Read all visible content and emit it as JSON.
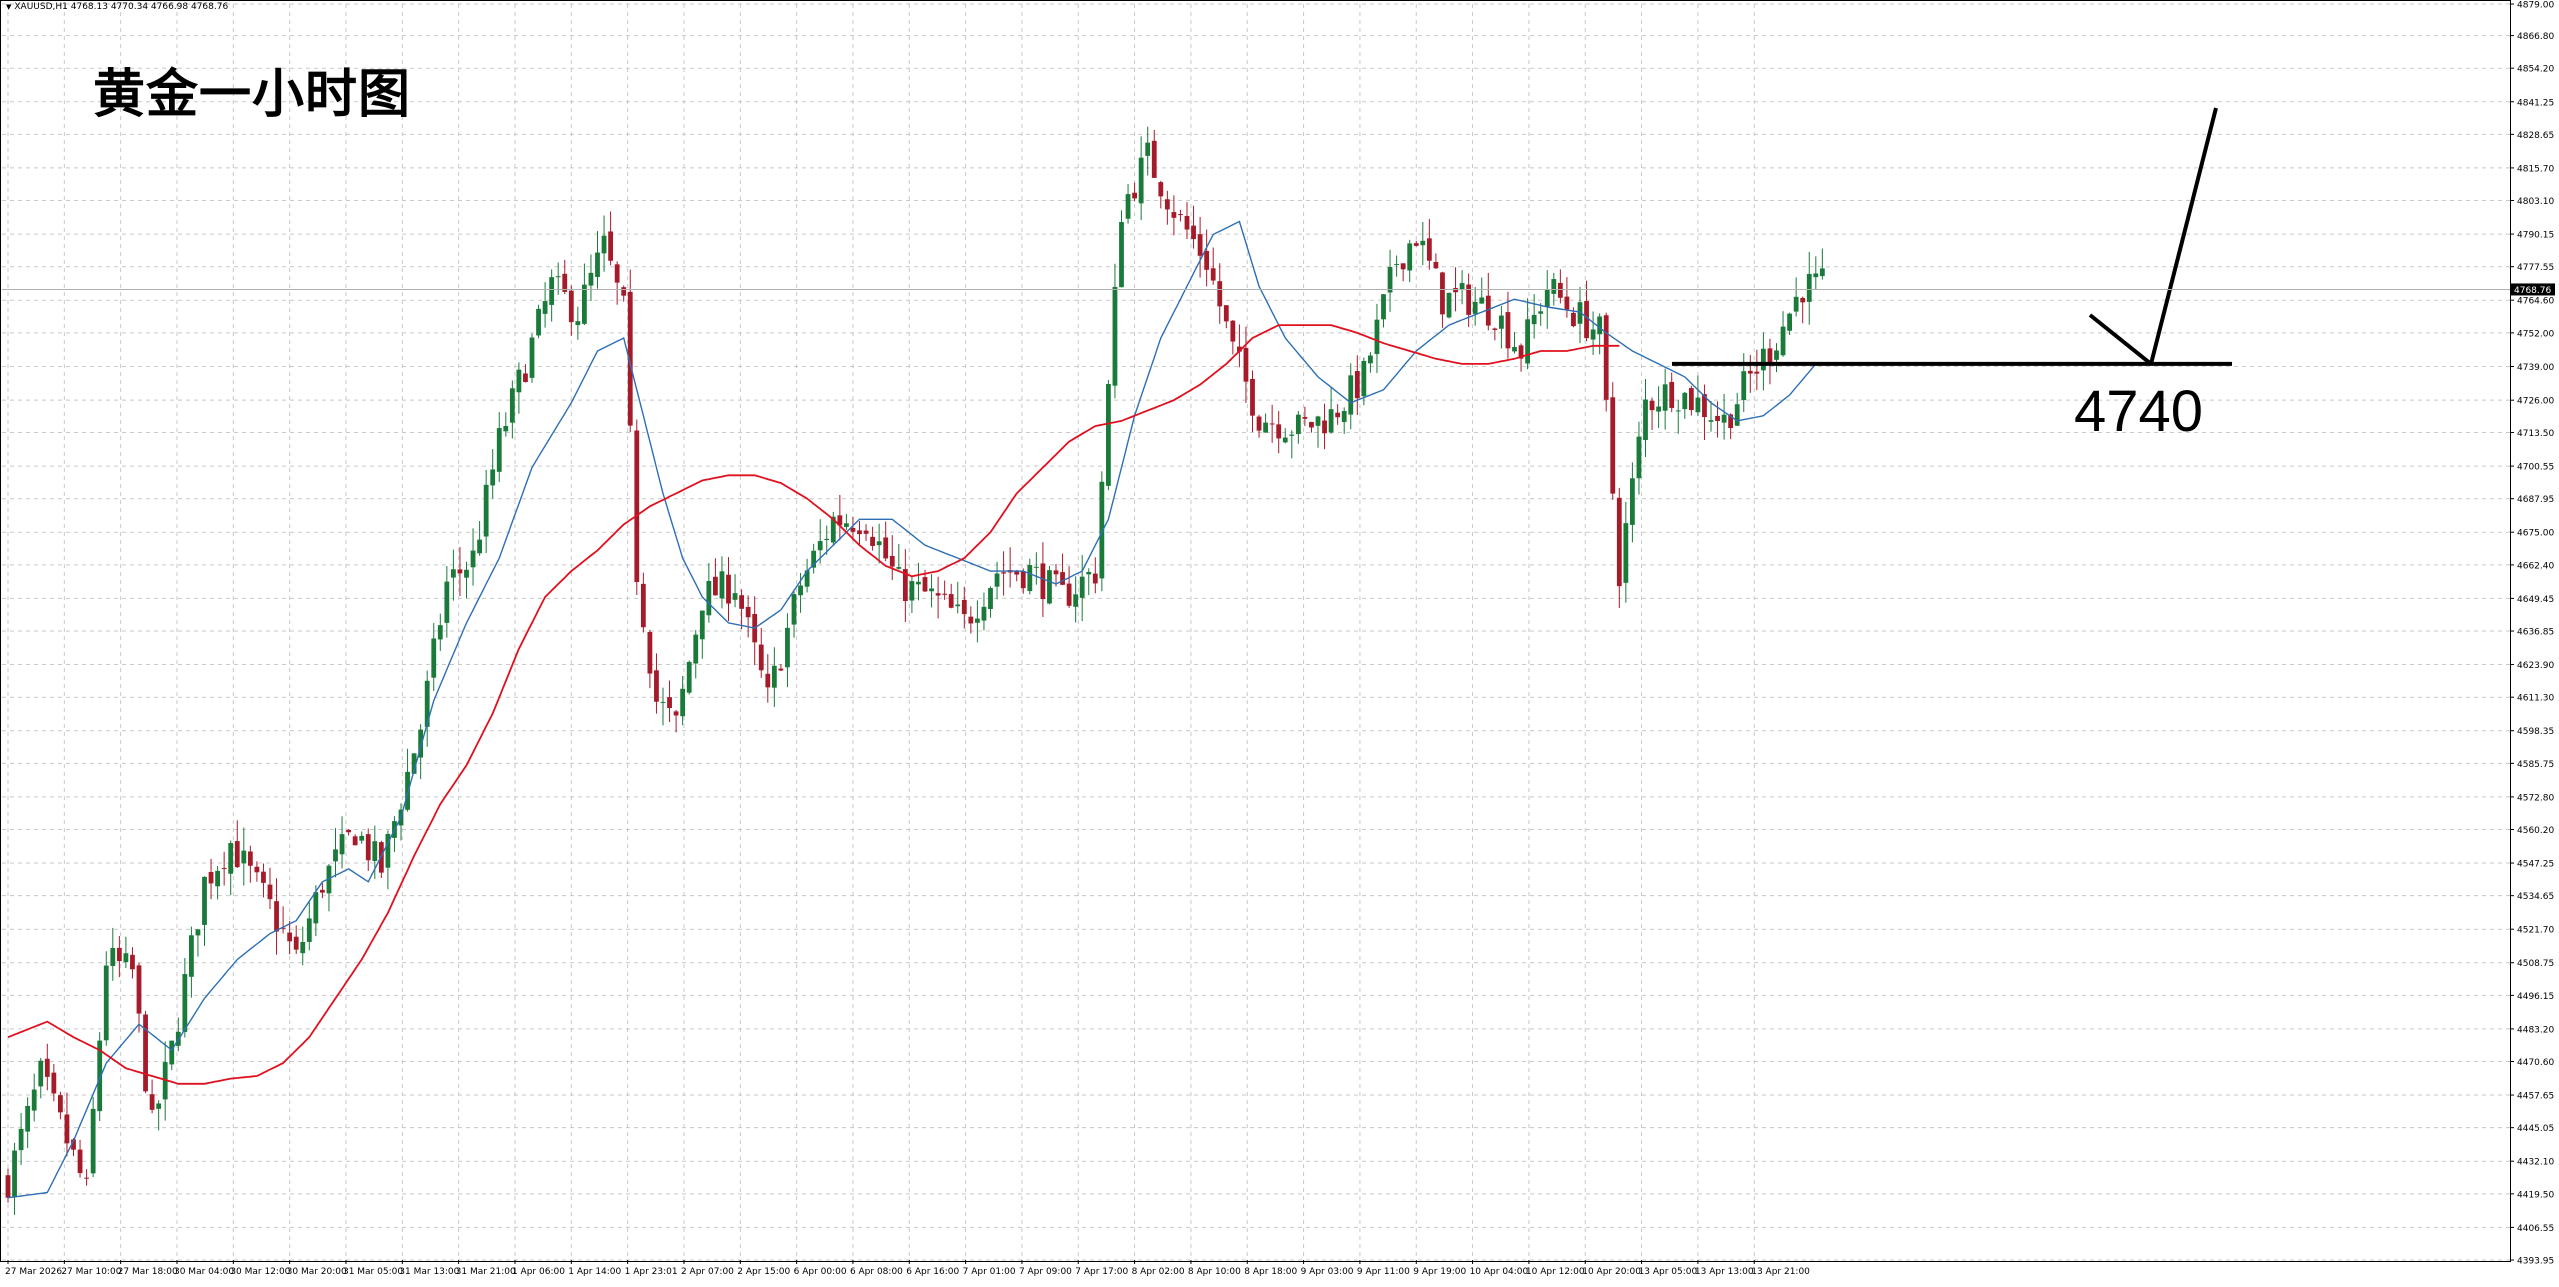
{
  "header": {
    "symbol_info": "XAUUSD,H1  4768.13 4770.34 4766.98 4768.76"
  },
  "annotations": {
    "title": "黄金一小时图",
    "level_label": "4740"
  },
  "colors": {
    "bull_candle": "#1a7a3a",
    "bear_candle": "#a51b2a",
    "ma_fast": "#2d6fb5",
    "ma_slow": "#e0101f",
    "grid": "#c8c8c8",
    "level_line": "#000000",
    "price_tag_bg": "#000000"
  },
  "chart_data": {
    "type": "candlestick",
    "symbol": "XAUUSD",
    "timeframe": "H1",
    "current_price": 4768.76,
    "current_price_label": "4768.76",
    "ylim": [
      4393.95,
      4879.0
    ],
    "grid": true,
    "y_ticks": [
      "4879.00",
      "4866.80",
      "4854.20",
      "4841.25",
      "4828.65",
      "4815.70",
      "4803.10",
      "4790.15",
      "4777.55",
      "4764.60",
      "4752.00",
      "4739.00",
      "4726.00",
      "4713.50",
      "4700.55",
      "4687.95",
      "4675.00",
      "4662.40",
      "4649.45",
      "4636.85",
      "4623.90",
      "4611.30",
      "4598.35",
      "4585.75",
      "4572.80",
      "4560.20",
      "4547.25",
      "4534.65",
      "4521.70",
      "4508.75",
      "4496.15",
      "4483.20",
      "4470.60",
      "4457.65",
      "4445.05",
      "4432.10",
      "4419.50",
      "4406.55",
      "4393.95"
    ],
    "x_ticks": [
      "27 Mar 2026",
      "27 Mar 10:00",
      "27 Mar 18:00",
      "30 Mar 04:00",
      "30 Mar 12:00",
      "30 Mar 20:00",
      "31 Mar 05:00",
      "31 Mar 13:00",
      "31 Mar 21:00",
      "1 Apr 06:00",
      "1 Apr 14:00",
      "1 Apr 23:01",
      "2 Apr 07:00",
      "2 Apr 15:00",
      "6 Apr 00:00",
      "6 Apr 08:00",
      "6 Apr 16:00",
      "7 Apr 01:00",
      "7 Apr 09:00",
      "7 Apr 17:00",
      "8 Apr 02:00",
      "8 Apr 10:00",
      "8 Apr 18:00",
      "9 Apr 03:00",
      "9 Apr 11:00",
      "9 Apr 19:00",
      "10 Apr 04:00",
      "10 Apr 12:00",
      "10 Apr 20:00",
      "13 Apr 05:00",
      "13 Apr 13:00",
      "13 Apr 21:00"
    ],
    "key_level": 4740,
    "close_anchors": [
      [
        0,
        4425
      ],
      [
        5,
        4465
      ],
      [
        9,
        4440
      ],
      [
        12,
        4420
      ],
      [
        15,
        4510
      ],
      [
        19,
        4505
      ],
      [
        22,
        4445
      ],
      [
        25,
        4475
      ],
      [
        30,
        4540
      ],
      [
        34,
        4555
      ],
      [
        40,
        4530
      ],
      [
        44,
        4510
      ],
      [
        48,
        4540
      ],
      [
        53,
        4560
      ],
      [
        57,
        4545
      ],
      [
        63,
        4600
      ],
      [
        67,
        4655
      ],
      [
        71,
        4665
      ],
      [
        75,
        4710
      ],
      [
        79,
        4740
      ],
      [
        83,
        4770
      ],
      [
        87,
        4760
      ],
      [
        91,
        4785
      ],
      [
        94,
        4760
      ],
      [
        96,
        4660
      ],
      [
        99,
        4610
      ],
      [
        102,
        4600
      ],
      [
        106,
        4650
      ],
      [
        111,
        4655
      ],
      [
        116,
        4610
      ],
      [
        121,
        4655
      ],
      [
        126,
        4680
      ],
      [
        131,
        4680
      ],
      [
        136,
        4655
      ],
      [
        141,
        4650
      ],
      [
        146,
        4640
      ],
      [
        151,
        4660
      ],
      [
        156,
        4660
      ],
      [
        161,
        4650
      ],
      [
        166,
        4660
      ],
      [
        170,
        4800
      ],
      [
        174,
        4820
      ],
      [
        179,
        4795
      ],
      [
        183,
        4780
      ],
      [
        187,
        4745
      ],
      [
        191,
        4720
      ],
      [
        197,
        4715
      ],
      [
        202,
        4720
      ],
      [
        207,
        4735
      ],
      [
        212,
        4780
      ],
      [
        215,
        4790
      ],
      [
        219,
        4765
      ],
      [
        223,
        4765
      ],
      [
        227,
        4760
      ],
      [
        231,
        4745
      ],
      [
        235,
        4770
      ],
      [
        239,
        4760
      ],
      [
        243,
        4752
      ],
      [
        246,
        4660
      ],
      [
        250,
        4725
      ],
      [
        254,
        4730
      ],
      [
        258,
        4725
      ],
      [
        262,
        4718
      ],
      [
        266,
        4735
      ],
      [
        270,
        4750
      ],
      [
        274,
        4770
      ]
    ],
    "ma_fast_anchors": [
      [
        0,
        4418
      ],
      [
        6,
        4420
      ],
      [
        10,
        4440
      ],
      [
        15,
        4470
      ],
      [
        20,
        4485
      ],
      [
        25,
        4475
      ],
      [
        30,
        4495
      ],
      [
        35,
        4510
      ],
      [
        40,
        4520
      ],
      [
        44,
        4525
      ],
      [
        48,
        4540
      ],
      [
        52,
        4545
      ],
      [
        55,
        4540
      ],
      [
        60,
        4565
      ],
      [
        65,
        4610
      ],
      [
        70,
        4640
      ],
      [
        75,
        4665
      ],
      [
        80,
        4700
      ],
      [
        86,
        4725
      ],
      [
        90,
        4745
      ],
      [
        94,
        4750
      ],
      [
        97,
        4720
      ],
      [
        100,
        4690
      ],
      [
        103,
        4665
      ],
      [
        106,
        4650
      ],
      [
        110,
        4640
      ],
      [
        114,
        4638
      ],
      [
        118,
        4645
      ],
      [
        122,
        4660
      ],
      [
        126,
        4670
      ],
      [
        130,
        4680
      ],
      [
        135,
        4680
      ],
      [
        140,
        4670
      ],
      [
        145,
        4665
      ],
      [
        150,
        4660
      ],
      [
        155,
        4660
      ],
      [
        160,
        4655
      ],
      [
        164,
        4660
      ],
      [
        168,
        4680
      ],
      [
        172,
        4720
      ],
      [
        176,
        4750
      ],
      [
        180,
        4770
      ],
      [
        184,
        4790
      ],
      [
        188,
        4795
      ],
      [
        191,
        4770
      ],
      [
        195,
        4750
      ],
      [
        200,
        4735
      ],
      [
        205,
        4725
      ],
      [
        210,
        4730
      ],
      [
        215,
        4745
      ],
      [
        220,
        4755
      ],
      [
        225,
        4760
      ],
      [
        230,
        4765
      ],
      [
        235,
        4762
      ],
      [
        240,
        4760
      ],
      [
        244,
        4752
      ],
      [
        248,
        4745
      ],
      [
        252,
        4740
      ],
      [
        256,
        4735
      ],
      [
        260,
        4725
      ],
      [
        264,
        4718
      ],
      [
        268,
        4720
      ],
      [
        272,
        4728
      ],
      [
        276,
        4740
      ]
    ],
    "ma_slow_anchors": [
      [
        0,
        4480
      ],
      [
        6,
        4486
      ],
      [
        10,
        4480
      ],
      [
        14,
        4475
      ],
      [
        18,
        4468
      ],
      [
        22,
        4465
      ],
      [
        26,
        4462
      ],
      [
        30,
        4462
      ],
      [
        34,
        4464
      ],
      [
        38,
        4465
      ],
      [
        42,
        4470
      ],
      [
        46,
        4480
      ],
      [
        50,
        4495
      ],
      [
        54,
        4510
      ],
      [
        58,
        4528
      ],
      [
        62,
        4550
      ],
      [
        66,
        4570
      ],
      [
        70,
        4585
      ],
      [
        74,
        4605
      ],
      [
        78,
        4630
      ],
      [
        82,
        4650
      ],
      [
        86,
        4660
      ],
      [
        90,
        4668
      ],
      [
        94,
        4678
      ],
      [
        98,
        4685
      ],
      [
        102,
        4690
      ],
      [
        106,
        4695
      ],
      [
        110,
        4697
      ],
      [
        114,
        4697
      ],
      [
        118,
        4694
      ],
      [
        122,
        4688
      ],
      [
        126,
        4680
      ],
      [
        130,
        4670
      ],
      [
        134,
        4662
      ],
      [
        138,
        4658
      ],
      [
        142,
        4660
      ],
      [
        146,
        4665
      ],
      [
        150,
        4675
      ],
      [
        154,
        4690
      ],
      [
        158,
        4700
      ],
      [
        162,
        4710
      ],
      [
        166,
        4716
      ],
      [
        170,
        4718
      ],
      [
        174,
        4722
      ],
      [
        178,
        4726
      ],
      [
        182,
        4732
      ],
      [
        186,
        4740
      ],
      [
        190,
        4750
      ],
      [
        194,
        4755
      ],
      [
        198,
        4755
      ],
      [
        202,
        4755
      ],
      [
        206,
        4752
      ],
      [
        210,
        4748
      ],
      [
        214,
        4745
      ],
      [
        218,
        4742
      ],
      [
        222,
        4740
      ],
      [
        226,
        4740
      ],
      [
        230,
        4742
      ],
      [
        234,
        4745
      ],
      [
        238,
        4745
      ],
      [
        242,
        4747
      ],
      [
        246,
        4747
      ]
    ],
    "bar_count": 278,
    "bars_per_x_tick": 8.6
  }
}
